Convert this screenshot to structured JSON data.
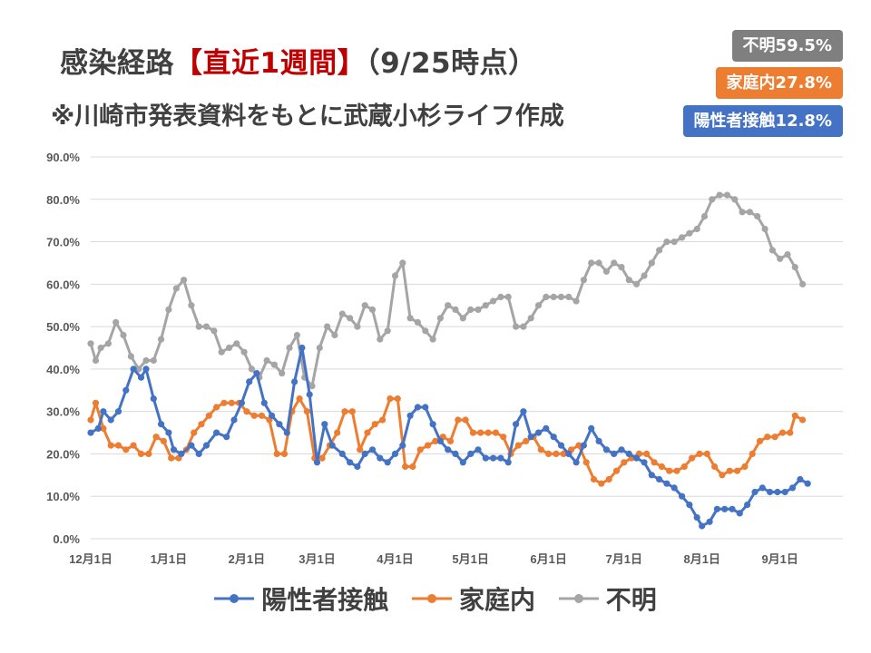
{
  "header": {
    "title_prefix": "感染経路",
    "title_highlight": "【直近1週間】",
    "title_suffix": "（9/25時点）",
    "subtitle": "※川崎市発表資料をもとに武蔵小杉ライフ作成"
  },
  "badges": [
    {
      "label": "不明59.5%",
      "color": "#7f7f7f"
    },
    {
      "label": "家庭内27.8%",
      "color": "#ed7d31"
    },
    {
      "label": "陽性者接触12.8%",
      "color": "#4472c4"
    }
  ],
  "chart_data": {
    "type": "line",
    "title": "感染経路【直近1週間】（9/25時点）",
    "subtitle": "※川崎市発表資料をもとに武蔵小杉ライフ作成",
    "xlabel": "",
    "ylabel": "",
    "ylim": [
      0,
      90
    ],
    "y_ticks": [
      "0.0%",
      "10.0%",
      "20.0%",
      "30.0%",
      "40.0%",
      "50.0%",
      "60.0%",
      "70.0%",
      "80.0%",
      "90.0%"
    ],
    "x_range": [
      0,
      299
    ],
    "x_ticks": [
      {
        "label": "12月1日",
        "day": 0
      },
      {
        "label": "1月1日",
        "day": 31
      },
      {
        "label": "2月1日",
        "day": 62
      },
      {
        "label": "3月1日",
        "day": 90
      },
      {
        "label": "4月1日",
        "day": 121
      },
      {
        "label": "5月1日",
        "day": 151
      },
      {
        "label": "6月1日",
        "day": 182
      },
      {
        "label": "7月1日",
        "day": 212
      },
      {
        "label": "8月1日",
        "day": 243
      },
      {
        "label": "9月1日",
        "day": 274
      }
    ],
    "grid": true,
    "legend_position": "bottom",
    "series": [
      {
        "name": "陽性者接触",
        "color": "#4472c4",
        "points": [
          [
            0,
            25
          ],
          [
            3,
            26
          ],
          [
            5,
            30
          ],
          [
            8,
            28
          ],
          [
            11,
            30
          ],
          [
            14,
            35
          ],
          [
            17,
            40
          ],
          [
            20,
            38
          ],
          [
            22,
            40
          ],
          [
            25,
            33
          ],
          [
            28,
            27
          ],
          [
            31,
            25
          ],
          [
            33,
            21
          ],
          [
            36,
            20
          ],
          [
            40,
            22
          ],
          [
            43,
            20
          ],
          [
            46,
            22
          ],
          [
            50,
            25
          ],
          [
            54,
            24
          ],
          [
            57,
            28
          ],
          [
            60,
            32
          ],
          [
            63,
            37
          ],
          [
            66,
            39
          ],
          [
            69,
            32
          ],
          [
            72,
            29
          ],
          [
            75,
            27
          ],
          [
            78,
            25
          ],
          [
            81,
            37
          ],
          [
            84,
            45
          ],
          [
            87,
            34
          ],
          [
            90,
            18
          ],
          [
            93,
            27
          ],
          [
            96,
            22
          ],
          [
            100,
            20
          ],
          [
            103,
            18
          ],
          [
            106,
            17
          ],
          [
            109,
            20
          ],
          [
            112,
            21
          ],
          [
            115,
            19
          ],
          [
            118,
            18
          ],
          [
            121,
            20
          ],
          [
            124,
            22
          ],
          [
            127,
            29
          ],
          [
            130,
            31
          ],
          [
            133,
            31
          ],
          [
            136,
            27
          ],
          [
            139,
            23
          ],
          [
            142,
            21
          ],
          [
            145,
            20
          ],
          [
            148,
            18
          ],
          [
            151,
            20
          ],
          [
            154,
            21
          ],
          [
            157,
            19
          ],
          [
            160,
            19
          ],
          [
            163,
            19
          ],
          [
            166,
            18
          ],
          [
            169,
            27
          ],
          [
            172,
            30
          ],
          [
            175,
            24
          ],
          [
            178,
            25
          ],
          [
            181,
            26
          ],
          [
            184,
            24
          ],
          [
            187,
            22
          ],
          [
            190,
            20
          ],
          [
            193,
            18
          ],
          [
            196,
            22
          ],
          [
            199,
            26
          ],
          [
            202,
            23
          ],
          [
            205,
            21
          ],
          [
            208,
            20
          ],
          [
            211,
            21
          ],
          [
            214,
            20
          ],
          [
            217,
            19
          ],
          [
            220,
            18
          ],
          [
            223,
            15
          ],
          [
            226,
            14
          ],
          [
            229,
            13
          ],
          [
            232,
            12
          ],
          [
            235,
            10
          ],
          [
            238,
            8
          ],
          [
            241,
            5
          ],
          [
            243,
            3
          ],
          [
            246,
            4
          ],
          [
            249,
            7
          ],
          [
            252,
            7
          ],
          [
            255,
            7
          ],
          [
            258,
            6
          ],
          [
            261,
            8
          ],
          [
            264,
            11
          ],
          [
            267,
            12
          ],
          [
            270,
            11
          ],
          [
            273,
            11
          ],
          [
            276,
            11
          ],
          [
            279,
            12
          ],
          [
            282,
            14
          ],
          [
            285,
            13
          ]
        ]
      },
      {
        "name": "家庭内",
        "color": "#ed7d31",
        "points": [
          [
            0,
            28
          ],
          [
            2,
            32
          ],
          [
            5,
            26
          ],
          [
            8,
            22
          ],
          [
            11,
            22
          ],
          [
            14,
            21
          ],
          [
            17,
            22
          ],
          [
            20,
            20
          ],
          [
            23,
            20
          ],
          [
            26,
            24
          ],
          [
            29,
            23
          ],
          [
            32,
            19
          ],
          [
            35,
            19
          ],
          [
            38,
            21
          ],
          [
            41,
            25
          ],
          [
            44,
            27
          ],
          [
            47,
            29
          ],
          [
            50,
            31
          ],
          [
            53,
            32
          ],
          [
            56,
            32
          ],
          [
            59,
            32
          ],
          [
            62,
            30
          ],
          [
            65,
            29
          ],
          [
            68,
            29
          ],
          [
            71,
            28
          ],
          [
            74,
            20
          ],
          [
            77,
            20
          ],
          [
            80,
            30
          ],
          [
            83,
            33
          ],
          [
            86,
            30
          ],
          [
            89,
            19
          ],
          [
            92,
            19
          ],
          [
            95,
            22
          ],
          [
            98,
            25
          ],
          [
            101,
            30
          ],
          [
            104,
            30
          ],
          [
            107,
            21
          ],
          [
            110,
            25
          ],
          [
            113,
            27
          ],
          [
            116,
            28
          ],
          [
            119,
            33
          ],
          [
            122,
            33
          ],
          [
            125,
            17
          ],
          [
            128,
            17
          ],
          [
            131,
            21
          ],
          [
            134,
            22
          ],
          [
            137,
            23
          ],
          [
            140,
            24
          ],
          [
            143,
            23
          ],
          [
            146,
            28
          ],
          [
            149,
            28
          ],
          [
            152,
            25
          ],
          [
            155,
            25
          ],
          [
            158,
            25
          ],
          [
            161,
            25
          ],
          [
            164,
            24
          ],
          [
            167,
            20
          ],
          [
            170,
            22
          ],
          [
            173,
            23
          ],
          [
            176,
            24
          ],
          [
            179,
            21
          ],
          [
            182,
            20
          ],
          [
            185,
            20
          ],
          [
            188,
            20
          ],
          [
            191,
            21
          ],
          [
            194,
            22
          ],
          [
            197,
            18
          ],
          [
            200,
            14
          ],
          [
            203,
            13
          ],
          [
            206,
            14
          ],
          [
            209,
            16
          ],
          [
            212,
            18
          ],
          [
            215,
            19
          ],
          [
            218,
            20
          ],
          [
            221,
            20
          ],
          [
            224,
            18
          ],
          [
            227,
            17
          ],
          [
            230,
            16
          ],
          [
            233,
            16
          ],
          [
            236,
            17
          ],
          [
            239,
            19
          ],
          [
            242,
            20
          ],
          [
            245,
            20
          ],
          [
            248,
            17
          ],
          [
            251,
            15
          ],
          [
            254,
            16
          ],
          [
            257,
            16
          ],
          [
            260,
            17
          ],
          [
            263,
            20
          ],
          [
            266,
            23
          ],
          [
            269,
            24
          ],
          [
            272,
            24
          ],
          [
            275,
            25
          ],
          [
            278,
            25
          ],
          [
            280,
            29
          ],
          [
            283,
            28
          ]
        ]
      },
      {
        "name": "不明",
        "color": "#a5a5a5",
        "points": [
          [
            0,
            46
          ],
          [
            2,
            42
          ],
          [
            4,
            45
          ],
          [
            7,
            46
          ],
          [
            10,
            51
          ],
          [
            13,
            48
          ],
          [
            16,
            43
          ],
          [
            19,
            40
          ],
          [
            22,
            42
          ],
          [
            25,
            42
          ],
          [
            28,
            47
          ],
          [
            31,
            54
          ],
          [
            34,
            59
          ],
          [
            37,
            61
          ],
          [
            40,
            55
          ],
          [
            43,
            50
          ],
          [
            46,
            50
          ],
          [
            49,
            49
          ],
          [
            52,
            44
          ],
          [
            55,
            45
          ],
          [
            58,
            46
          ],
          [
            61,
            44
          ],
          [
            64,
            40
          ],
          [
            67,
            38
          ],
          [
            70,
            42
          ],
          [
            73,
            41
          ],
          [
            76,
            39
          ],
          [
            79,
            45
          ],
          [
            82,
            48
          ],
          [
            85,
            38
          ],
          [
            88,
            36
          ],
          [
            91,
            45
          ],
          [
            94,
            50
          ],
          [
            97,
            48
          ],
          [
            100,
            53
          ],
          [
            103,
            52
          ],
          [
            106,
            50
          ],
          [
            109,
            55
          ],
          [
            112,
            54
          ],
          [
            115,
            47
          ],
          [
            118,
            49
          ],
          [
            121,
            62
          ],
          [
            124,
            65
          ],
          [
            127,
            52
          ],
          [
            130,
            51
          ],
          [
            133,
            49
          ],
          [
            136,
            47
          ],
          [
            139,
            52
          ],
          [
            142,
            55
          ],
          [
            145,
            54
          ],
          [
            148,
            52
          ],
          [
            151,
            54
          ],
          [
            154,
            54
          ],
          [
            157,
            55
          ],
          [
            160,
            56
          ],
          [
            163,
            57
          ],
          [
            166,
            57
          ],
          [
            169,
            50
          ],
          [
            172,
            50
          ],
          [
            175,
            52
          ],
          [
            178,
            55
          ],
          [
            181,
            57
          ],
          [
            184,
            57
          ],
          [
            187,
            57
          ],
          [
            190,
            57
          ],
          [
            193,
            56
          ],
          [
            196,
            61
          ],
          [
            199,
            65
          ],
          [
            202,
            65
          ],
          [
            205,
            63
          ],
          [
            208,
            65
          ],
          [
            211,
            64
          ],
          [
            214,
            61
          ],
          [
            217,
            60
          ],
          [
            220,
            62
          ],
          [
            223,
            65
          ],
          [
            226,
            68
          ],
          [
            229,
            70
          ],
          [
            232,
            70
          ],
          [
            235,
            71
          ],
          [
            238,
            72
          ],
          [
            241,
            73
          ],
          [
            244,
            76
          ],
          [
            247,
            80
          ],
          [
            250,
            81
          ],
          [
            253,
            81
          ],
          [
            256,
            80
          ],
          [
            259,
            77
          ],
          [
            262,
            77
          ],
          [
            265,
            76
          ],
          [
            268,
            73
          ],
          [
            271,
            68
          ],
          [
            274,
            66
          ],
          [
            277,
            67
          ],
          [
            280,
            64
          ],
          [
            283,
            60
          ]
        ]
      }
    ]
  }
}
